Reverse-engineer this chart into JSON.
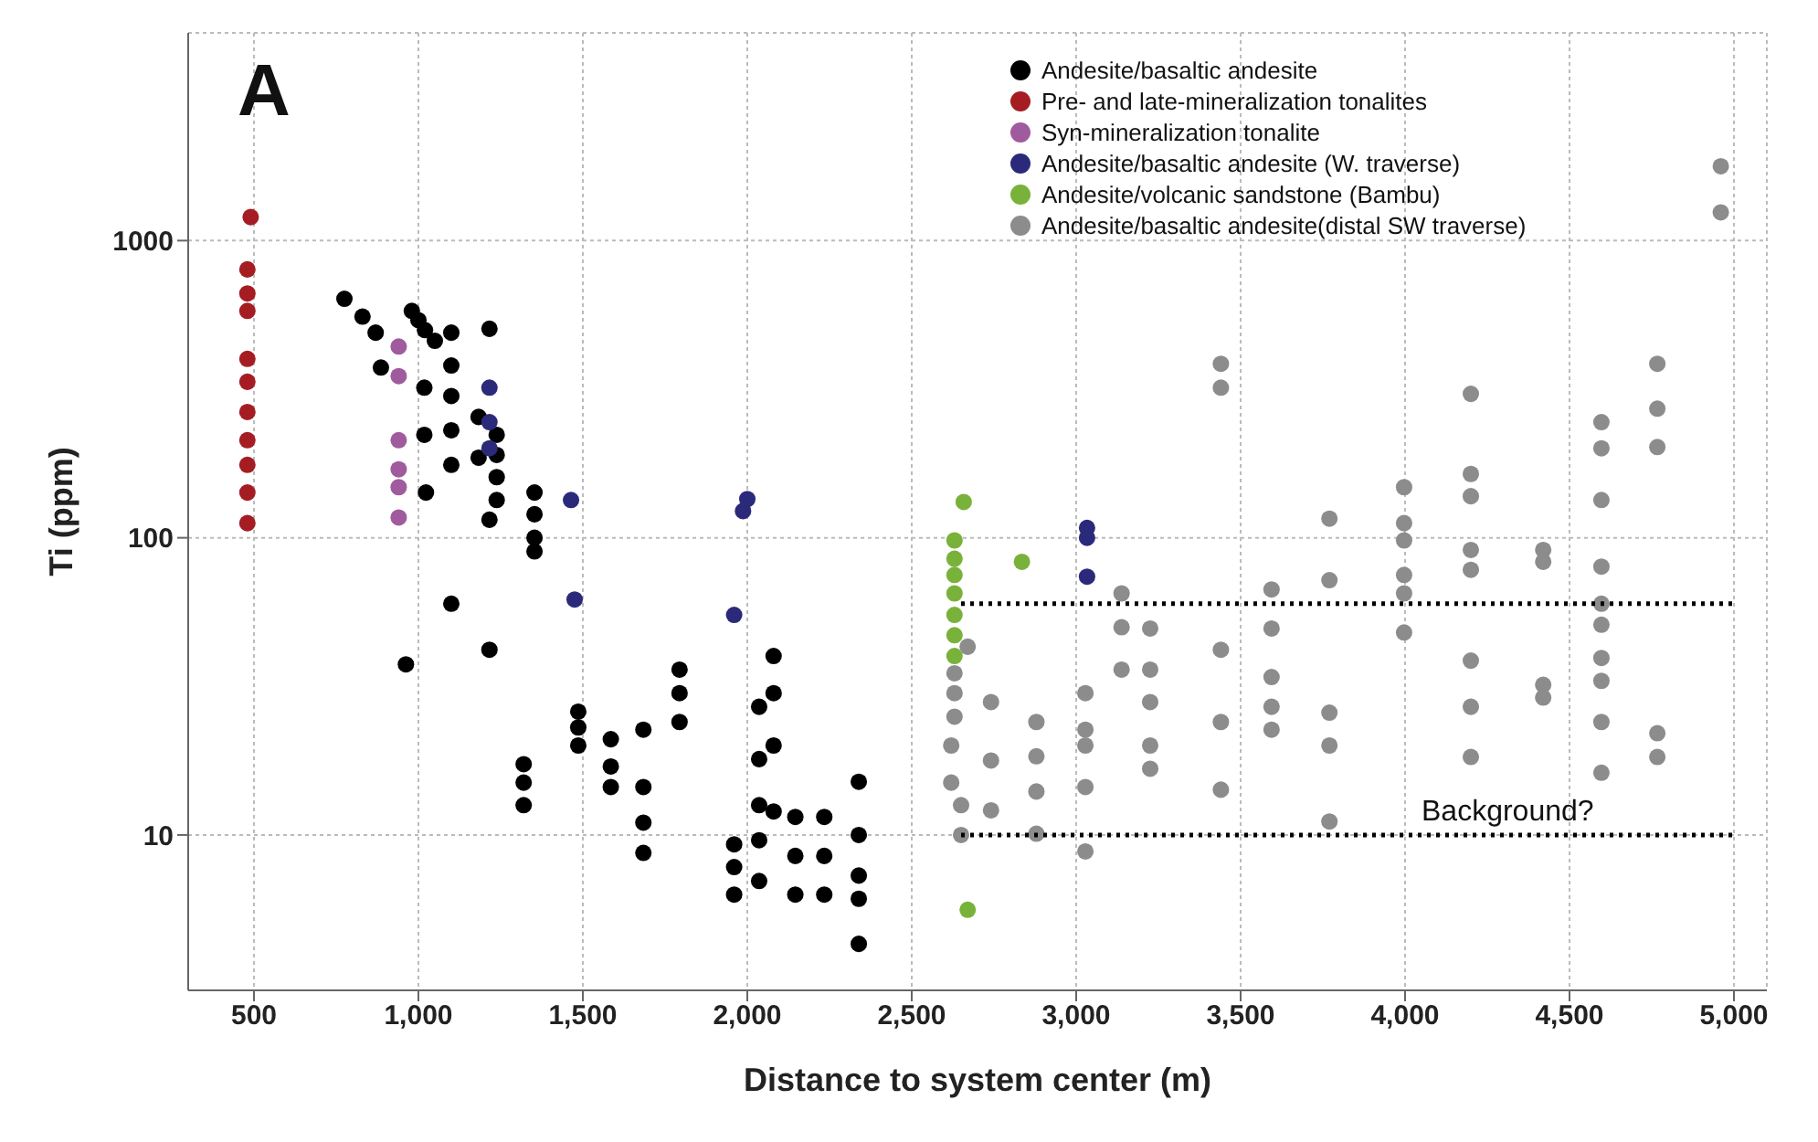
{
  "chart_data": {
    "type": "scatter",
    "xlabel": "Distance to system center (m)",
    "ylabel": "Ti (ppm)",
    "xlim": [
      300,
      5100
    ],
    "xticks": [
      500,
      {
        "value": 1000,
        "label": "1,000"
      },
      {
        "value": 1500,
        "label": "1,500"
      },
      {
        "value": 2000,
        "label": "2,000"
      },
      {
        "value": 2500,
        "label": "2,500"
      },
      {
        "value": 3000,
        "label": "3,000"
      },
      {
        "value": 3500,
        "label": "3,500"
      },
      {
        "value": 4000,
        "label": "4,000"
      },
      {
        "value": 4500,
        "label": "4,500"
      },
      {
        "value": 5000,
        "label": "5,000"
      }
    ],
    "ylim": [
      3,
      5000
    ],
    "yticks": [
      10,
      100,
      1000
    ],
    "log": "y",
    "grid": true,
    "legend": "top right",
    "marker": "circle",
    "annotations": [
      "A",
      "Background?"
    ],
    "series": [
      {
        "name": "Andesite/basaltic andesite",
        "color": "#000000",
        "x": [
          775,
          830,
          870,
          886,
          980,
          1000,
          1020,
          1050,
          1018,
          1100,
          1216,
          1100,
          1100,
          1100,
          1100,
          1018,
          1023,
          1183,
          1183,
          1238,
          1238,
          1238,
          1238,
          1216,
          1353,
          1353,
          1353,
          1353,
          1100,
          962,
          1216,
          1320,
          1320,
          1320,
          1486,
          1486,
          1486,
          1585,
          1585,
          1585,
          1684,
          1684,
          1684,
          1684,
          1794,
          1794,
          1794,
          2080,
          2080,
          2080,
          2080,
          2036,
          2036,
          2036,
          1960,
          1960,
          1960,
          2036,
          2036,
          2146,
          2146,
          2146,
          2234,
          2234,
          2234,
          2339,
          2339,
          2339,
          2339,
          2339
        ],
        "values": [
          637,
          555,
          490,
          374,
          580,
          540,
          500,
          460,
          320,
          490,
          505,
          380,
          300,
          230,
          176,
          222,
          142,
          255,
          186,
          222,
          190,
          160,
          134,
          115,
          142,
          120,
          100,
          90,
          60,
          37.5,
          42,
          17.3,
          15,
          12.6,
          26,
          23,
          20,
          21,
          17,
          14.5,
          22.6,
          14.5,
          11,
          8.7,
          36,
          30,
          24,
          40,
          30,
          20,
          12,
          27,
          18,
          12.6,
          9.3,
          7.8,
          6.3,
          9.6,
          7,
          11.5,
          8.5,
          6.3,
          11.5,
          8.5,
          6.3,
          15.1,
          10,
          7.3,
          6.1,
          4.3
        ]
      },
      {
        "name": "Pre- and late-mineralization tonalites",
        "color": "#a51d22",
        "x": [
          490,
          480,
          480,
          480,
          480,
          480,
          480,
          480,
          480,
          480,
          480
        ],
        "values": [
          1200,
          800,
          664,
          580,
          400,
          335,
          265,
          213,
          176,
          142,
          112
        ]
      },
      {
        "name": "Syn-mineralization tonalite",
        "color": "#a05a9e",
        "x": [
          940,
          940,
          940,
          940,
          940,
          940
        ],
        "values": [
          440,
          350,
          213,
          170,
          148,
          117
        ]
      },
      {
        "name": "Andesite/basaltic andesite (W. traverse)",
        "color": "#2b2a7a",
        "x": [
          1216,
          1216,
          1216,
          1464,
          1475,
          1960,
          1987,
          2000,
          3033,
          3033,
          3033
        ],
        "values": [
          320,
          245,
          200,
          134,
          62,
          55,
          123,
          135,
          108,
          100,
          74
        ]
      },
      {
        "name": "Andesite/volcanic sandstone (Bambu)",
        "color": "#79b23a",
        "x": [
          2658,
          2630,
          2630,
          2630,
          2630,
          2630,
          2630,
          2630,
          2835,
          2670
        ],
        "values": [
          132,
          98,
          85,
          75,
          65,
          55,
          47,
          40,
          83,
          5.6
        ]
      },
      {
        "name": "Andesite/basaltic andesite(distal SW traverse)",
        "color": "#8c8c8c",
        "x": [
          2630,
          2630,
          2630,
          2620,
          2620,
          2650,
          2650,
          2670,
          2741,
          2741,
          2741,
          2879,
          2879,
          2879,
          2879,
          3028,
          3028,
          3028,
          3028,
          3028,
          3138,
          3138,
          3138,
          3225,
          3225,
          3225,
          3225,
          3225,
          3440,
          3440,
          3440,
          3440,
          3440,
          3594,
          3594,
          3594,
          3594,
          3594,
          3770,
          3770,
          3770,
          3770,
          3770,
          3997,
          3997,
          3997,
          3997,
          3997,
          3997,
          4200,
          4200,
          4200,
          4200,
          4200,
          4200,
          4200,
          4200,
          4420,
          4420,
          4420,
          4420,
          4597,
          4597,
          4597,
          4597,
          4597,
          4597,
          4597,
          4597,
          4597,
          4597,
          4767,
          4767,
          4767,
          4767,
          4767,
          4960,
          4960
        ],
        "values": [
          35,
          30,
          25,
          20,
          15,
          12.6,
          10,
          43,
          28,
          17.8,
          12.1,
          24,
          18.4,
          14,
          10.1,
          30,
          22.6,
          20,
          14.5,
          8.8,
          65,
          50,
          36,
          49.5,
          36,
          28,
          20,
          16.7,
          385,
          320,
          42,
          24,
          14.2,
          67,
          49.5,
          34,
          27,
          22.6,
          116,
          72,
          25.8,
          20,
          11.1,
          148,
          112,
          98,
          75,
          65,
          48,
          305,
          164,
          138,
          91,
          78,
          38.6,
          27,
          18.3,
          91,
          83,
          32,
          29,
          245,
          200,
          134,
          80,
          60,
          51,
          39.4,
          33,
          24,
          16.2,
          385,
          272,
          202,
          22,
          18.3,
          1780,
          1245
        ]
      },
      {
        "type": "line",
        "color": "#000000",
        "line_style": "dotted",
        "marker": "none",
        "x": [
          2650,
          5000
        ],
        "values": [
          60,
          60
        ]
      },
      {
        "type": "line",
        "color": "#000000",
        "line_style": "dotted",
        "marker": "none",
        "x": [
          2650,
          5000
        ],
        "values": [
          10,
          10
        ]
      }
    ]
  }
}
